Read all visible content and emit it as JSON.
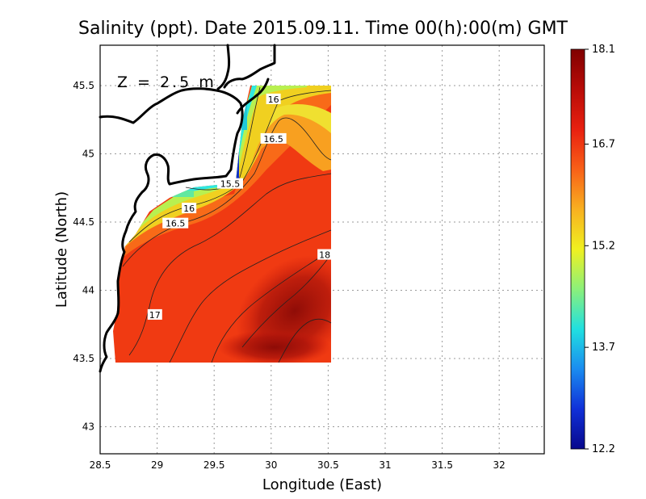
{
  "chart_data": {
    "type": "heatmap",
    "title": "Salinity (ppt). Date 2015.09.11. Time 00(h):00(m) GMT",
    "xlabel": "Longitude (East)",
    "ylabel": "Latitude (North)",
    "depth_label": "Z = 2.5 m",
    "xlim": [
      28.5,
      32.4
    ],
    "ylim": [
      42.8,
      45.8
    ],
    "x_ticks": [
      28.5,
      29,
      29.5,
      30,
      30.5,
      31,
      31.5,
      32
    ],
    "x_tick_labels": [
      "28.5",
      "29",
      "29.5",
      "30",
      "30.5",
      "31",
      "31.5",
      "32"
    ],
    "y_ticks": [
      43,
      43.5,
      44,
      44.5,
      45,
      45.5
    ],
    "y_tick_labels": [
      "43",
      "43.5",
      "44",
      "44.5",
      "45",
      "45.5"
    ],
    "grid": true,
    "colorbar": {
      "min": 12.2,
      "max": 18.1,
      "tick_values": [
        12.2,
        13.7,
        15.2,
        16.7,
        18.1
      ],
      "tick_labels": [
        "12.2",
        "13.7",
        "15.2",
        "16.7",
        "18.1"
      ],
      "colors": [
        "#08088c",
        "#1030d8",
        "#1a8cf0",
        "#20e0e0",
        "#8cf07a",
        "#f0f020",
        "#f8b020",
        "#f86018",
        "#e82010",
        "#b80c08",
        "#800000"
      ]
    },
    "contour_labels": [
      {
        "value": "16",
        "lon": 30.02,
        "lat": 45.4
      },
      {
        "value": "16.5",
        "lon": 30.02,
        "lat": 45.11
      },
      {
        "value": "15.5",
        "lon": 29.64,
        "lat": 44.78
      },
      {
        "value": "16",
        "lon": 29.28,
        "lat": 44.6
      },
      {
        "value": "16.5",
        "lon": 29.16,
        "lat": 44.49
      },
      {
        "value": "18",
        "lon": 30.47,
        "lat": 44.26
      },
      {
        "value": "17",
        "lon": 28.98,
        "lat": 43.82
      }
    ]
  }
}
